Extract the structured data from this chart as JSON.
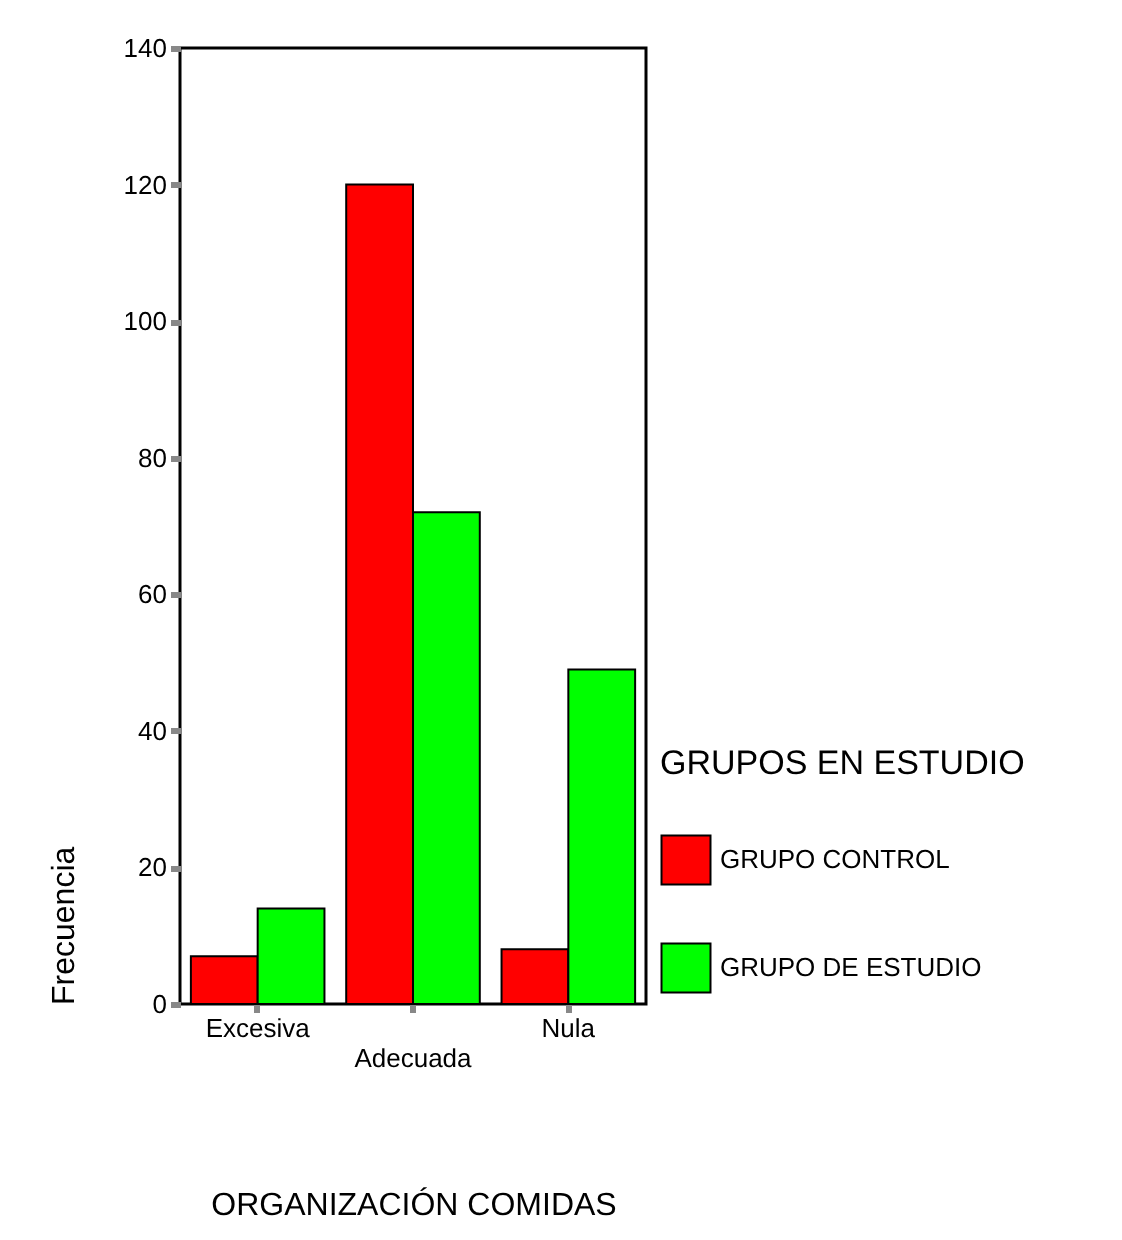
{
  "chart_data": {
    "type": "bar",
    "xlabel": "ORGANIZACIÓN COMIDAS",
    "ylabel": "Frecuencia",
    "legend_title": "GRUPOS EN ESTUDIO",
    "categories": [
      "Excesiva",
      "Adecuada",
      "Nula"
    ],
    "series": [
      {
        "name": "GRUPO CONTROL",
        "color": "#ff0000",
        "values": [
          7,
          120,
          8
        ]
      },
      {
        "name": "GRUPO DE ESTUDIO",
        "color": "#00ff00",
        "values": [
          14,
          72,
          49
        ]
      }
    ],
    "ylim": [
      0,
      140
    ],
    "yticks": [
      0,
      20,
      40,
      60,
      80,
      100,
      120,
      140
    ],
    "grid": false,
    "legend": "right"
  }
}
